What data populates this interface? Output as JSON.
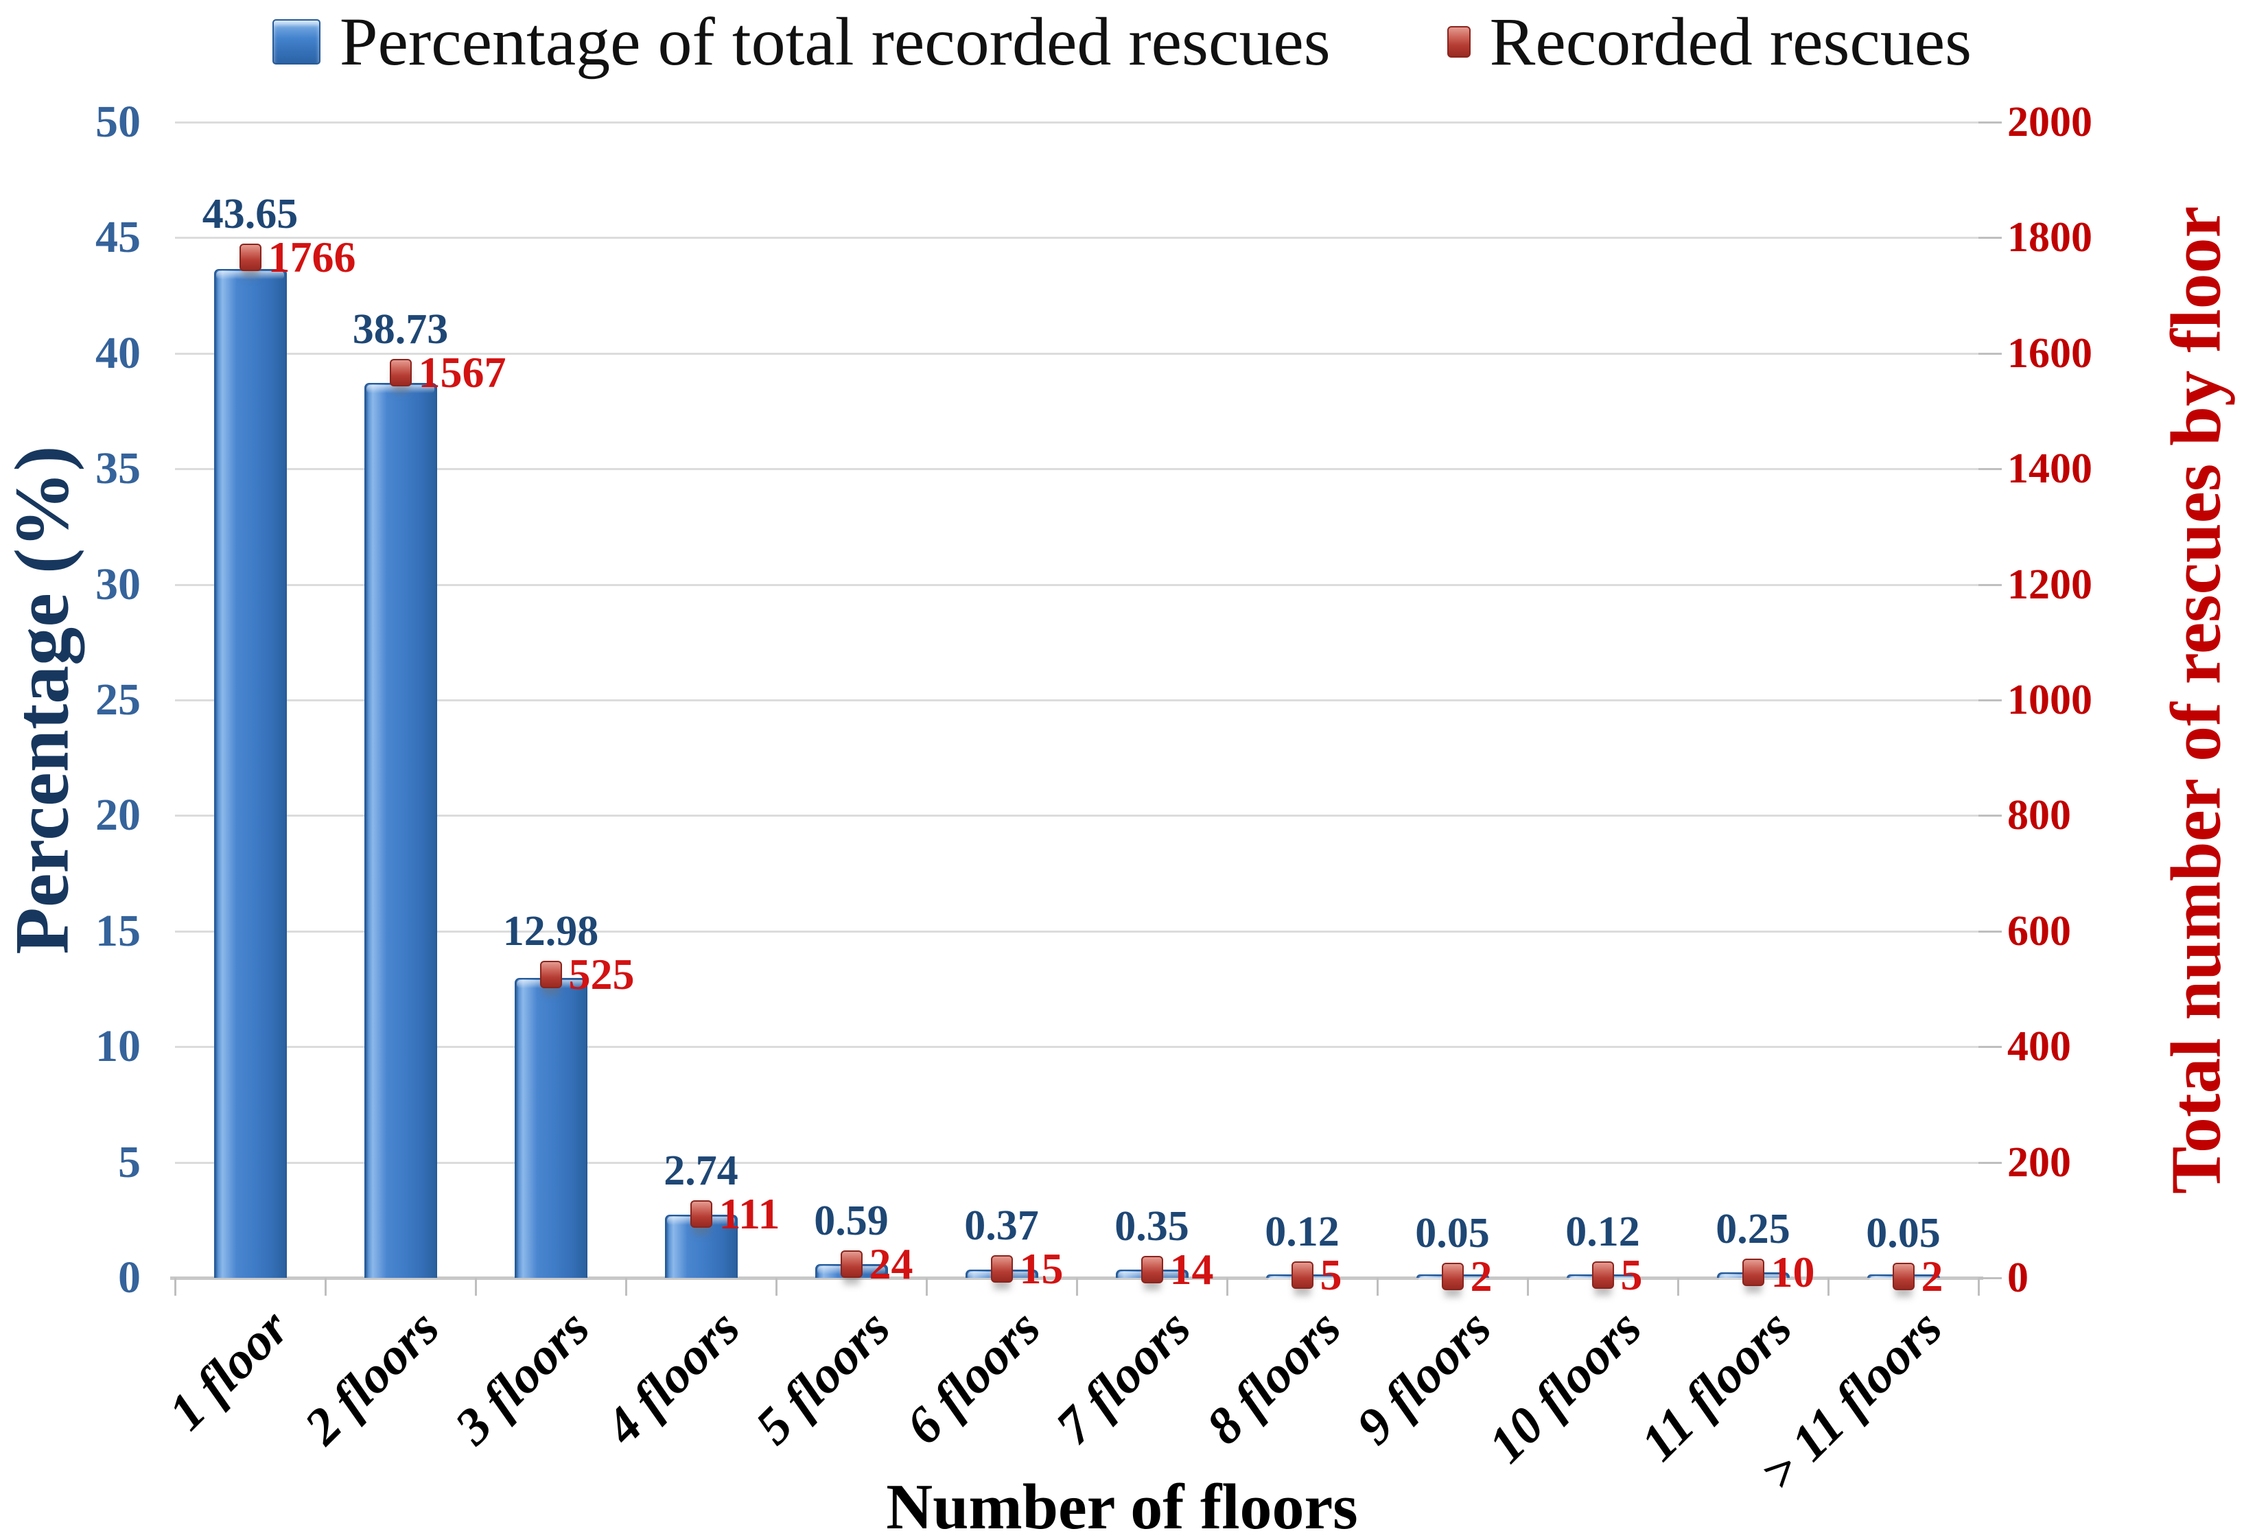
{
  "legend": {
    "items": [
      {
        "label": "Percentage of total recorded rescues",
        "swatch": "blue-bar"
      },
      {
        "label": "Recorded rescues",
        "swatch": "red-marker"
      }
    ]
  },
  "chart_data": {
    "type": "bar",
    "categories": [
      "1 floor",
      "2 floors",
      "3 floors",
      "4 floors",
      "5 floors",
      "6 floors",
      "7 floors",
      "8 floors",
      "9 floors",
      "10 floors",
      "11 floors",
      "> 11 floors"
    ],
    "series": [
      {
        "name": "Percentage of total recorded rescues",
        "type": "bar",
        "axis": "left",
        "values": [
          43.65,
          38.73,
          12.98,
          2.74,
          0.59,
          0.37,
          0.35,
          0.12,
          0.05,
          0.12,
          0.25,
          0.05
        ]
      },
      {
        "name": "Recorded rescues",
        "type": "point",
        "axis": "right",
        "values": [
          1766,
          1567,
          525,
          111,
          24,
          15,
          14,
          5,
          2,
          5,
          10,
          2
        ]
      }
    ],
    "left_axis": {
      "label": "Percentage (%)",
      "range": [
        0,
        50
      ],
      "tick_step": 5,
      "tick_labels": [
        "0",
        "5",
        "10",
        "15",
        "20",
        "25",
        "30",
        "35",
        "40",
        "45",
        "50"
      ]
    },
    "right_axis": {
      "label": "Total number of rescues by floor",
      "range": [
        0,
        2000
      ],
      "tick_step": 200,
      "tick_labels": [
        "0",
        "200",
        "400",
        "600",
        "800",
        "1000",
        "1200",
        "1400",
        "1600",
        "1800",
        "2000"
      ]
    },
    "x_axis": {
      "label": "Number of floors"
    },
    "grid": true,
    "legend_position": "top"
  },
  "colors": {
    "bar_fill": "#3F7CC7",
    "bar_border": "#275A96",
    "marker_fill": "#B53C33",
    "marker_border": "#8A241D",
    "pct_label": "#1E4775",
    "count_label": "#D31212",
    "left_tick": "#35639B",
    "left_title": "#17375E",
    "right_tick": "#C00000",
    "right_title": "#C00000",
    "grid": "#DCDCDC",
    "baseline": "#C8C8C8",
    "tick_mark": "#BFBFBF",
    "legend_text": "#111111"
  }
}
